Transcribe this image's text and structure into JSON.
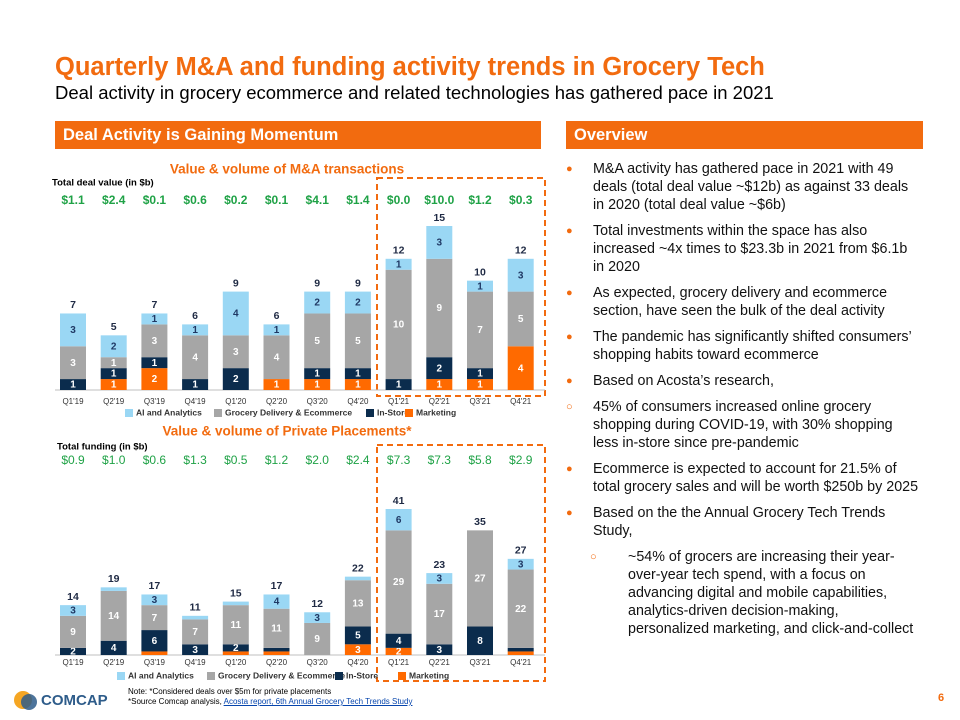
{
  "title": "Quarterly M&A and funding activity trends in Grocery Tech",
  "subtitle": "Deal activity in grocery ecommerce and related technologies has gathered pace in 2021",
  "left_header": "Deal Activity is Gaining Momentum",
  "chart_data": [
    {
      "type": "stacked-bar",
      "title": "Value & volume of M&A transactions",
      "top_row_title": "Total deal value (in $b)",
      "top_row": [
        "$1.1",
        "$2.4",
        "$0.1",
        "$0.6",
        "$0.2",
        "$0.1",
        "$4.1",
        "$1.4",
        "$0.0",
        "$10.0",
        "$1.2",
        "$0.3"
      ],
      "top_row_bold": true,
      "categories": [
        "Q1'19",
        "Q2'19",
        "Q3'19",
        "Q4'19",
        "Q1'20",
        "Q2'20",
        "Q3'20",
        "Q4'20",
        "Q1'21",
        "Q2'21",
        "Q3'21",
        "Q4'21"
      ],
      "series": [
        {
          "name": "Marketing",
          "color": "#ff6a00",
          "values": [
            0,
            1,
            2,
            0,
            0,
            1,
            1,
            1,
            0,
            1,
            1,
            4
          ]
        },
        {
          "name": "In-Store",
          "color": "#0b2c4d",
          "values": [
            1,
            1,
            1,
            1,
            2,
            0,
            1,
            1,
            1,
            2,
            1,
            0
          ]
        },
        {
          "name": "Grocery Delivery & Ecommerce",
          "color": "#a6a6a6",
          "values": [
            3,
            1,
            3,
            4,
            3,
            4,
            5,
            5,
            10,
            9,
            7,
            5
          ]
        },
        {
          "name": "AI and Analytics",
          "color": "#9ad7f4",
          "values": [
            3,
            2,
            1,
            1,
            4,
            1,
            2,
            2,
            1,
            3,
            1,
            3
          ]
        }
      ],
      "totals": [
        7,
        5,
        7,
        6,
        9,
        6,
        9,
        9,
        12,
        15,
        10,
        12
      ]
    },
    {
      "type": "stacked-bar",
      "title": "Value & volume of Private Placements*",
      "top_row_title": "Total funding (in $b)",
      "top_row": [
        "$0.9",
        "$1.0",
        "$0.6",
        "$1.3",
        "$0.5",
        "$1.2",
        "$2.0",
        "$2.4",
        "$7.3",
        "$7.3",
        "$5.8",
        "$2.9"
      ],
      "top_row_bold": false,
      "categories": [
        "Q1'19",
        "Q2'19",
        "Q3'19",
        "Q4'19",
        "Q1'20",
        "Q2'20",
        "Q3'20",
        "Q4'20",
        "Q1'21",
        "Q2'21",
        "Q3'21",
        "Q4'21"
      ],
      "series": [
        {
          "name": "Marketing",
          "color": "#ff6a00",
          "values": [
            0,
            0,
            1,
            0,
            1,
            1,
            0,
            3,
            2,
            0,
            0,
            1
          ]
        },
        {
          "name": "In-Store",
          "color": "#0b2c4d",
          "values": [
            2,
            4,
            6,
            3,
            2,
            1,
            0,
            5,
            4,
            3,
            8,
            1
          ]
        },
        {
          "name": "Grocery Delivery & Ecommerce",
          "color": "#a6a6a6",
          "values": [
            9,
            14,
            7,
            7,
            11,
            11,
            9,
            13,
            29,
            17,
            27,
            22
          ]
        },
        {
          "name": "AI and Analytics",
          "color": "#9ad7f4",
          "values": [
            3,
            1,
            3,
            1,
            1,
            4,
            3,
            1,
            6,
            3,
            0,
            3
          ]
        }
      ],
      "totals": [
        14,
        19,
        17,
        11,
        15,
        17,
        12,
        22,
        41,
        23,
        35,
        27
      ]
    }
  ],
  "overview": {
    "title": "Overview",
    "bullets": [
      {
        "text": "M&A activity has gathered pace in 2021 with 49 deals (total deal value ~$12b) as against 33 deals in 2020 (total deal value ~$6b)",
        "marker": "filled",
        "level": 1
      },
      {
        "text": "Total investments within the space has also increased ~4x times to $23.3b in 2021 from $6.1b in 2020",
        "marker": "filled",
        "level": 1
      },
      {
        "text": "As expected, grocery delivery and ecommerce section, have seen the bulk of the deal activity",
        "marker": "filled",
        "level": 1
      },
      {
        "text": "The pandemic has significantly shifted consumers’ shopping habits toward ecommerce",
        "marker": "filled",
        "level": 1
      },
      {
        "text": "Based on Acosta’s research,",
        "marker": "filled",
        "level": 1
      },
      {
        "text": "45% of consumers increased online grocery shopping during COVID-19, with 30% shopping less in-store since pre-pandemic",
        "marker": "hollow",
        "level": 1
      },
      {
        "text": "Ecommerce is expected to account for 21.5% of total grocery sales and will be worth $250b by 2025",
        "marker": "filled",
        "level": 1
      },
      {
        "text": "Based on the the Annual Grocery Tech Trends Study,",
        "marker": "filled",
        "level": 1
      },
      {
        "text": "~54% of grocers are increasing their year-over-year tech spend, with a focus on advancing digital and mobile capabilities, analytics-driven decision-making, personalized marketing, and click-and-collect",
        "marker": "hollow",
        "level": 2
      }
    ]
  },
  "footer": {
    "logo": "COMCAP",
    "note": "Note: *Considered deals over $5m for private placements",
    "source": "*Source Comcap analysis,",
    "source_link": "Acosta report, 6th Annual Grocery Tech Trends Study",
    "page": "6"
  }
}
